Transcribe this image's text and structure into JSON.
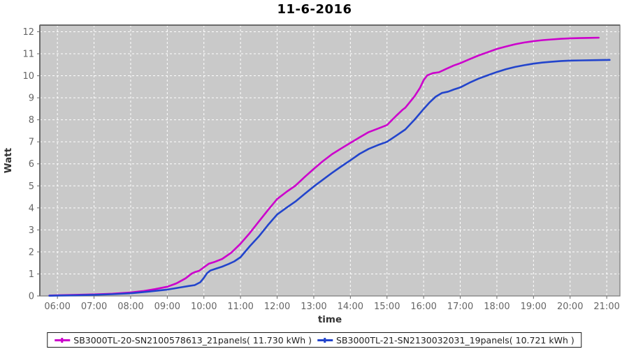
{
  "title": "11-6-2016",
  "chart_data": {
    "type": "line",
    "title": "11-6-2016",
    "xlabel": "time",
    "ylabel": "Watt",
    "xlim": [
      5.52,
      21.36
    ],
    "ylim": [
      0,
      12.3
    ],
    "grid": true,
    "legend_position": "bottom",
    "plot_bg_color": "#c9c9c9",
    "grid_color": "#ffffff",
    "border_color": "#7f7f7f",
    "tick_label_color": "#666666",
    "axis_title_color": "#333333",
    "x_tick_hours": [
      6,
      7,
      8,
      9,
      10,
      11,
      12,
      13,
      14,
      15,
      16,
      17,
      18,
      19,
      20,
      21
    ],
    "x_tick_labels": [
      "06:00",
      "07:00",
      "08:00",
      "09:00",
      "10:00",
      "11:00",
      "12:00",
      "13:00",
      "14:00",
      "15:00",
      "16:00",
      "17:00",
      "18:00",
      "19:00",
      "20:00",
      "21:00"
    ],
    "y_ticks": [
      0,
      1,
      2,
      3,
      4,
      5,
      6,
      7,
      8,
      9,
      10,
      11,
      12
    ],
    "series": [
      {
        "name": "SB3000TL-20-SN2100578613_21panels( 11.730 kWh )",
        "color": "#cc00cc",
        "total_kwh": 11.73,
        "panels": 21,
        "points": [
          [
            5.78,
            0.02
          ],
          [
            6,
            0.03
          ],
          [
            6.5,
            0.05
          ],
          [
            7,
            0.07
          ],
          [
            7.5,
            0.1
          ],
          [
            8,
            0.16
          ],
          [
            8.33,
            0.22
          ],
          [
            8.67,
            0.31
          ],
          [
            9,
            0.42
          ],
          [
            9.25,
            0.57
          ],
          [
            9.5,
            0.8
          ],
          [
            9.67,
            1.02
          ],
          [
            9.75,
            1.08
          ],
          [
            9.87,
            1.14
          ],
          [
            10,
            1.3
          ],
          [
            10.13,
            1.46
          ],
          [
            10.3,
            1.55
          ],
          [
            10.5,
            1.68
          ],
          [
            10.75,
            1.97
          ],
          [
            11,
            2.37
          ],
          [
            11.25,
            2.85
          ],
          [
            11.5,
            3.38
          ],
          [
            11.75,
            3.9
          ],
          [
            12,
            4.4
          ],
          [
            12.25,
            4.72
          ],
          [
            12.5,
            5.01
          ],
          [
            12.75,
            5.4
          ],
          [
            13,
            5.77
          ],
          [
            13.25,
            6.12
          ],
          [
            13.5,
            6.44
          ],
          [
            13.75,
            6.7
          ],
          [
            14,
            6.95
          ],
          [
            14.25,
            7.2
          ],
          [
            14.5,
            7.44
          ],
          [
            14.75,
            7.6
          ],
          [
            15,
            7.76
          ],
          [
            15.25,
            8.18
          ],
          [
            15.42,
            8.45
          ],
          [
            15.5,
            8.55
          ],
          [
            15.75,
            9.06
          ],
          [
            15.9,
            9.45
          ],
          [
            16,
            9.8
          ],
          [
            16.1,
            10.02
          ],
          [
            16.25,
            10.12
          ],
          [
            16.42,
            10.16
          ],
          [
            16.6,
            10.3
          ],
          [
            16.83,
            10.47
          ],
          [
            17,
            10.57
          ],
          [
            17.25,
            10.75
          ],
          [
            17.5,
            10.92
          ],
          [
            17.75,
            11.07
          ],
          [
            18,
            11.22
          ],
          [
            18.25,
            11.33
          ],
          [
            18.5,
            11.43
          ],
          [
            18.75,
            11.51
          ],
          [
            19,
            11.57
          ],
          [
            19.25,
            11.62
          ],
          [
            19.5,
            11.65
          ],
          [
            19.75,
            11.68
          ],
          [
            20,
            11.7
          ],
          [
            20.25,
            11.71
          ],
          [
            20.5,
            11.72
          ],
          [
            20.78,
            11.73
          ]
        ]
      },
      {
        "name": "SB3000TL-21-SN2130032031_19panels( 10.721 kWh )",
        "color": "#2244cc",
        "total_kwh": 10.721,
        "panels": 19,
        "points": [
          [
            5.78,
            0.01
          ],
          [
            6,
            0.02
          ],
          [
            6.5,
            0.03
          ],
          [
            7,
            0.05
          ],
          [
            7.5,
            0.08
          ],
          [
            8,
            0.12
          ],
          [
            8.5,
            0.2
          ],
          [
            9,
            0.29
          ],
          [
            9.33,
            0.38
          ],
          [
            9.58,
            0.45
          ],
          [
            9.75,
            0.49
          ],
          [
            9.9,
            0.62
          ],
          [
            10,
            0.82
          ],
          [
            10.08,
            1.02
          ],
          [
            10.17,
            1.15
          ],
          [
            10.33,
            1.24
          ],
          [
            10.5,
            1.33
          ],
          [
            10.67,
            1.45
          ],
          [
            10.83,
            1.57
          ],
          [
            11,
            1.76
          ],
          [
            11.25,
            2.25
          ],
          [
            11.5,
            2.7
          ],
          [
            11.75,
            3.22
          ],
          [
            12,
            3.7
          ],
          [
            12.25,
            4
          ],
          [
            12.5,
            4.29
          ],
          [
            12.75,
            4.63
          ],
          [
            13,
            4.97
          ],
          [
            13.25,
            5.28
          ],
          [
            13.5,
            5.59
          ],
          [
            13.75,
            5.88
          ],
          [
            14,
            6.16
          ],
          [
            14.25,
            6.45
          ],
          [
            14.5,
            6.68
          ],
          [
            14.75,
            6.85
          ],
          [
            15,
            7
          ],
          [
            15.25,
            7.28
          ],
          [
            15.5,
            7.56
          ],
          [
            15.75,
            8
          ],
          [
            16,
            8.49
          ],
          [
            16.17,
            8.8
          ],
          [
            16.33,
            9.05
          ],
          [
            16.5,
            9.22
          ],
          [
            16.67,
            9.28
          ],
          [
            16.83,
            9.38
          ],
          [
            17,
            9.47
          ],
          [
            17.25,
            9.68
          ],
          [
            17.5,
            9.87
          ],
          [
            17.75,
            10.02
          ],
          [
            18,
            10.17
          ],
          [
            18.25,
            10.3
          ],
          [
            18.5,
            10.4
          ],
          [
            18.75,
            10.48
          ],
          [
            19,
            10.55
          ],
          [
            19.25,
            10.6
          ],
          [
            19.5,
            10.64
          ],
          [
            19.75,
            10.67
          ],
          [
            20,
            10.69
          ],
          [
            20.33,
            10.7
          ],
          [
            20.67,
            10.71
          ],
          [
            21.08,
            10.72
          ]
        ]
      }
    ]
  }
}
